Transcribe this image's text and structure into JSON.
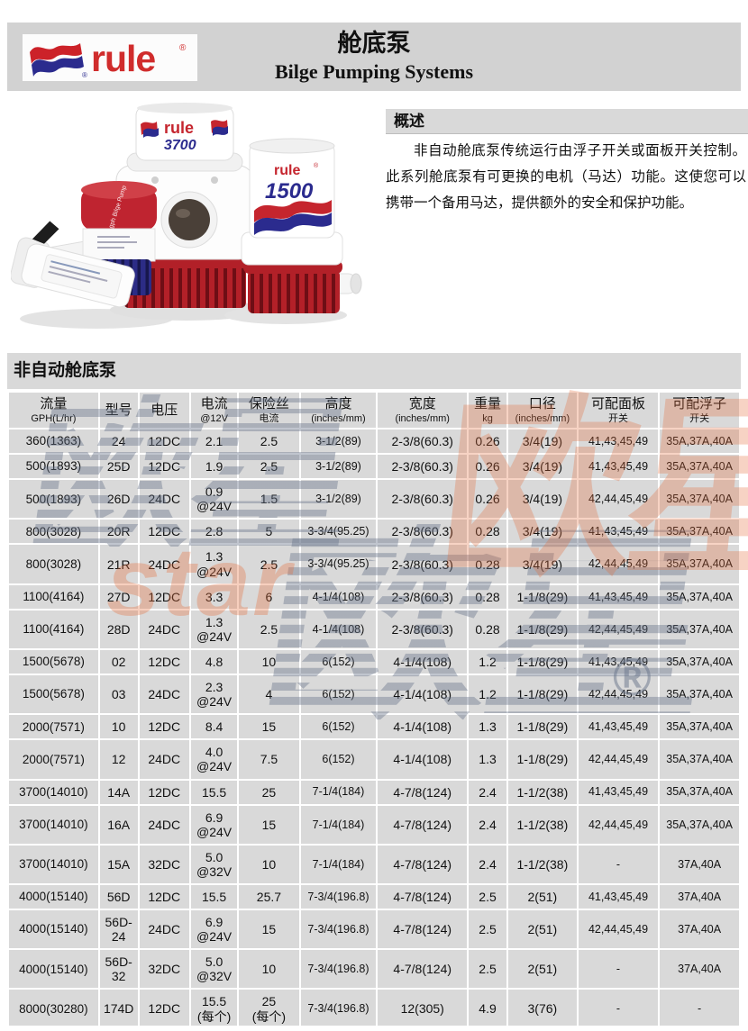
{
  "header": {
    "logo_text": "rule",
    "registered_mark": "®",
    "title_zh": "舱底泵",
    "title_en": "Bilge Pumping Systems"
  },
  "overview": {
    "heading": "概述",
    "body": "非自动舱底泵传统运行由浮子开关或面板开关控制。此系列舱底泵有可更换的电机（马达）功能。这使您可以携带一个备用马达，提供额外的安全和保护功能。"
  },
  "product_photo": {
    "pump_center_brand": "rule",
    "pump_center_model": "3700",
    "pump_right_brand": "rule",
    "pump_right_model": "1500",
    "pump_small_label": "360 gph Bilge Pump"
  },
  "watermark": {
    "text_zh": "欧星",
    "text_en": "star",
    "registered": "®",
    "orange": "#e66c3a",
    "gray": "#68748a"
  },
  "table": {
    "section_title": "非自动舱底泵",
    "columns": [
      {
        "line1": "流量",
        "line2": "GPH(L/hr)"
      },
      {
        "line1": "型号",
        "line2": ""
      },
      {
        "line1": "电压",
        "line2": ""
      },
      {
        "line1": "电流",
        "line2": "@12V"
      },
      {
        "line1": "保险丝",
        "line2": "电流"
      },
      {
        "line1": "高度",
        "line2": "(inches/mm)"
      },
      {
        "line1": "宽度",
        "line2": "(inches/mm)"
      },
      {
        "line1": "重量",
        "line2": "kg"
      },
      {
        "line1": "口径",
        "line2": "(inches/mm)"
      },
      {
        "line1": "可配面板",
        "line2": "开关"
      },
      {
        "line1": "可配浮子",
        "line2": "开关"
      }
    ],
    "col_widths_pct": [
      12.5,
      5.3,
      7.0,
      6.5,
      8.4,
      10.6,
      12.5,
      5.3,
      9.6,
      11.2,
      11.1
    ],
    "rows": [
      [
        "360(1363)",
        "24",
        "12DC",
        "2.1",
        "2.5",
        "3-1/2(89)",
        "2-3/8(60.3)",
        "0.26",
        "3/4(19)",
        "41,43,45,49",
        "35A,37A,40A"
      ],
      [
        "500(1893)",
        "25D",
        "12DC",
        "1.9",
        "2.5",
        "3-1/2(89)",
        "2-3/8(60.3)",
        "0.26",
        "3/4(19)",
        "41,43,45,49",
        "35A,37A,40A"
      ],
      [
        "500(1893)",
        "26D",
        "24DC",
        "0.9\n@24V",
        "1.5",
        "3-1/2(89)",
        "2-3/8(60.3)",
        "0.26",
        "3/4(19)",
        "42,44,45,49",
        "35A,37A,40A"
      ],
      [
        "800(3028)",
        "20R",
        "12DC",
        "2.8",
        "5",
        "3-3/4(95.25)",
        "2-3/8(60.3)",
        "0.28",
        "3/4(19)",
        "41,43,45,49",
        "35A,37A,40A"
      ],
      [
        "800(3028)",
        "21R",
        "24DC",
        "1.3\n@24V",
        "2.5",
        "3-3/4(95.25)",
        "2-3/8(60.3)",
        "0.28",
        "3/4(19)",
        "42,44,45,49",
        "35A,37A,40A"
      ],
      [
        "1100(4164)",
        "27D",
        "12DC",
        "3.3",
        "6",
        "4-1/4(108)",
        "2-3/8(60.3)",
        "0.28",
        "1-1/8(29)",
        "41,43,45,49",
        "35A,37A,40A"
      ],
      [
        "1100(4164)",
        "28D",
        "24DC",
        "1.3\n@24V",
        "2.5",
        "4-1/4(108)",
        "2-3/8(60.3)",
        "0.28",
        "1-1/8(29)",
        "42,44,45,49",
        "35A,37A,40A"
      ],
      [
        "1500(5678)",
        "02",
        "12DC",
        "4.8",
        "10",
        "6(152)",
        "4-1/4(108)",
        "1.2",
        "1-1/8(29)",
        "41,43,45,49",
        "35A,37A,40A"
      ],
      [
        "1500(5678)",
        "03",
        "24DC",
        "2.3\n@24V",
        "4",
        "6(152)",
        "4-1/4(108)",
        "1.2",
        "1-1/8(29)",
        "42,44,45,49",
        "35A,37A,40A"
      ],
      [
        "2000(7571)",
        "10",
        "12DC",
        "8.4",
        "15",
        "6(152)",
        "4-1/4(108)",
        "1.3",
        "1-1/8(29)",
        "41,43,45,49",
        "35A,37A,40A"
      ],
      [
        "2000(7571)",
        "12",
        "24DC",
        "4.0\n@24V",
        "7.5",
        "6(152)",
        "4-1/4(108)",
        "1.3",
        "1-1/8(29)",
        "42,44,45,49",
        "35A,37A,40A"
      ],
      [
        "3700(14010)",
        "14A",
        "12DC",
        "15.5",
        "25",
        "7-1/4(184)",
        "4-7/8(124)",
        "2.4",
        "1-1/2(38)",
        "41,43,45,49",
        "35A,37A,40A"
      ],
      [
        "3700(14010)",
        "16A",
        "24DC",
        "6.9\n@24V",
        "15",
        "7-1/4(184)",
        "4-7/8(124)",
        "2.4",
        "1-1/2(38)",
        "42,44,45,49",
        "35A,37A,40A"
      ],
      [
        "3700(14010)",
        "15A",
        "32DC",
        "5.0\n@32V",
        "10",
        "7-1/4(184)",
        "4-7/8(124)",
        "2.4",
        "1-1/2(38)",
        "-",
        "37A,40A"
      ],
      [
        "4000(15140)",
        "56D",
        "12DC",
        "15.5",
        "25.7",
        "7-3/4(196.8)",
        "4-7/8(124)",
        "2.5",
        "2(51)",
        "41,43,45,49",
        "37A,40A"
      ],
      [
        "4000(15140)",
        "56D-24",
        "24DC",
        "6.9\n@24V",
        "15",
        "7-3/4(196.8)",
        "4-7/8(124)",
        "2.5",
        "2(51)",
        "42,44,45,49",
        "37A,40A"
      ],
      [
        "4000(15140)",
        "56D-32",
        "32DC",
        "5.0\n@32V",
        "10",
        "7-3/4(196.8)",
        "4-7/8(124)",
        "2.5",
        "2(51)",
        "-",
        "37A,40A"
      ],
      [
        "8000(30280)",
        "174D",
        "12DC",
        "15.5\n(每个)",
        "25\n(每个)",
        "7-3/4(196.8)",
        "12(305)",
        "4.9",
        "3(76)",
        "-",
        "-"
      ]
    ]
  }
}
